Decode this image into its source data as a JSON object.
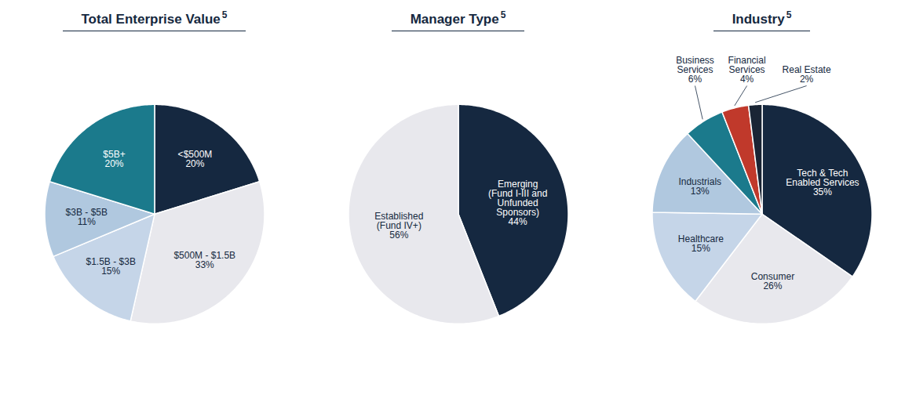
{
  "chart_data": [
    {
      "type": "pie",
      "title": "Total Enterprise Value",
      "annotations": [
        "5"
      ],
      "categories": [
        "<$500M",
        "$500M - $1.5B",
        "$1.5B - $3B",
        "$3B - $5B",
        "$5B+"
      ],
      "values": [
        20,
        33,
        15,
        11,
        20
      ],
      "value_labels": [
        "20%",
        "33%",
        "15%",
        "11%",
        "20%"
      ],
      "colors": [
        "#152840",
        "#e8e8ed",
        "#c5d5e8",
        "#b0c8df",
        "#1b7a8c"
      ],
      "data_labels": true
    },
    {
      "type": "pie",
      "title": "Manager Type",
      "annotations": [
        "5"
      ],
      "categories": [
        "Emerging\n(Fund I-III and\nUnfunded\nSponsors)",
        "Established\n(Fund IV+)"
      ],
      "values": [
        44,
        56
      ],
      "value_labels": [
        "44%",
        "56%"
      ],
      "colors": [
        "#152840",
        "#e8e8ed"
      ],
      "data_labels": true
    },
    {
      "type": "pie",
      "title": "Industry",
      "annotations": [
        "5"
      ],
      "categories": [
        "Tech & Tech\nEnabled Services",
        "Consumer",
        "Healthcare",
        "Industrials",
        "Business\nServices",
        "Financial\nServices",
        "Real Estate"
      ],
      "values": [
        35,
        26,
        15,
        13,
        6,
        4,
        2
      ],
      "value_labels": [
        "35%",
        "26%",
        "15%",
        "13%",
        "6%",
        "4%",
        "2%"
      ],
      "colors": [
        "#152840",
        "#e8e8ed",
        "#c5d5e8",
        "#b0c8df",
        "#1b7a8c",
        "#c0392b",
        "#1a2535"
      ],
      "data_labels": true
    }
  ]
}
